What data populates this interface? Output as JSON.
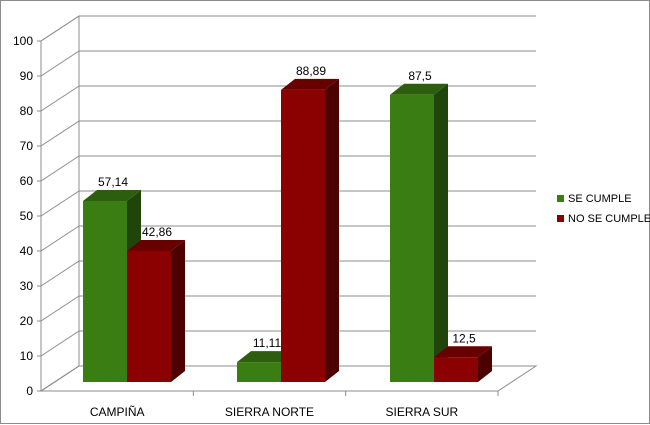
{
  "chart_data": {
    "type": "bar",
    "title": "",
    "xlabel": "",
    "ylabel": "",
    "ylim": [
      0,
      100
    ],
    "yticks": [
      0,
      10,
      20,
      30,
      40,
      50,
      60,
      70,
      80,
      90,
      100
    ],
    "categories": [
      "CAMPIÑA",
      "SIERRA NORTE",
      "SIERRA SUR"
    ],
    "series": [
      {
        "name": "SE CUMPLE",
        "values": [
          57.14,
          11.11,
          87.5
        ],
        "labels": [
          "57,14",
          "11,11",
          "87,5"
        ],
        "color": "#3a7d12"
      },
      {
        "name": "NO SE CUMPLE",
        "values": [
          42.86,
          88.89,
          12.5
        ],
        "labels": [
          "42,86",
          "88,89",
          "12,5"
        ],
        "color": "#8b0000"
      }
    ],
    "grid": true,
    "legend": "right",
    "style": "3d-clustered"
  }
}
